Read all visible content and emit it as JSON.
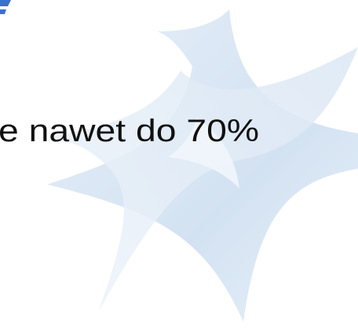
{
  "slide": {
    "text": "e nawet do 70%"
  }
}
